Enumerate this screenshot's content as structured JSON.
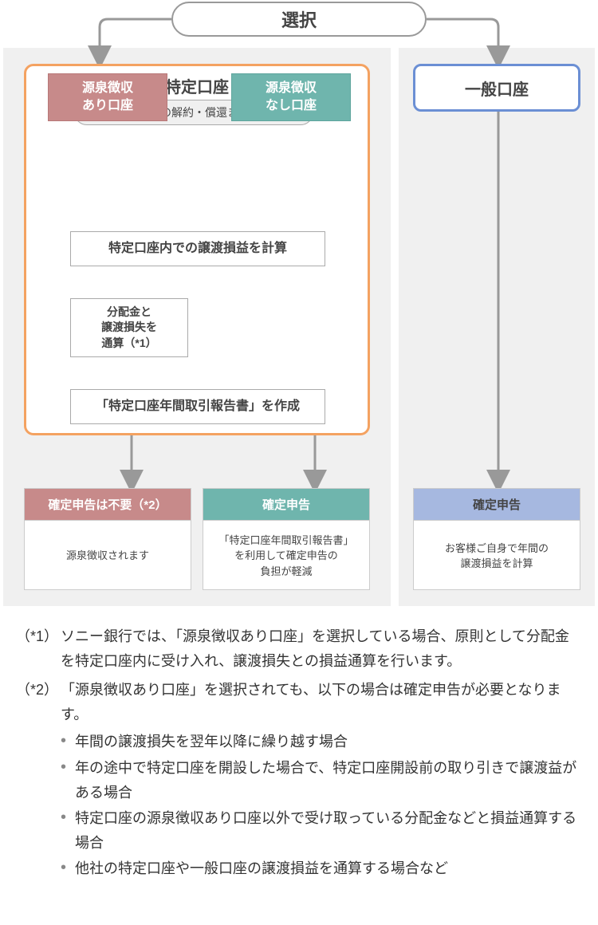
{
  "top": {
    "choice_label": "選択"
  },
  "tokutei": {
    "title": "特定口座",
    "sub_pill": "その年最初の解約・償還までに選択",
    "opt_ari": "源泉徴収\nあり口座",
    "opt_nashi": "源泉徴収\nなし口座",
    "step_calc": "特定口座内での譲渡損益を計算",
    "step_sum": "分配金と\n譲渡損失を\n通算（*1）",
    "step_rpt": "「特定口座年間取引報告書」を作成"
  },
  "ippan": {
    "title": "一般口座"
  },
  "results": {
    "left": {
      "header": "確定申告は不要（*2）",
      "body": "源泉徴収されます"
    },
    "mid": {
      "header": "確定申告",
      "body": "「特定口座年間取引報告書」\nを利用して確定申告の\n負担が軽減"
    },
    "right": {
      "header": "確定申告",
      "body": "お客様ご自身で年間の\n譲渡損益を計算"
    }
  },
  "notes": {
    "n1_label": "（*1）",
    "n1_body": "ソニー銀行では、「源泉徴収あり口座」を選択している場合、原則として分配金を特定口座内に受け入れ、譲渡損失との損益通算を行います。",
    "n2_label": "（*2）",
    "n2_body": "「源泉徴収あり口座」を選択されても、以下の場合は確定申告が必要となります。",
    "n2_items": [
      "年間の譲渡損失を翌年以降に繰り越す場合",
      "年の途中で特定口座を開設した場合で、特定口座開設前の取り引きで譲渡益がある場合",
      "特定口座の源泉徴収あり口座以外で受け取っている分配金などと損益通算する場合",
      "他社の特定口座や一般口座の譲渡損益を通算する場合など"
    ]
  },
  "colors": {
    "accent_orange": "#f4a261",
    "accent_blue": "#6b8fd4",
    "pink": "#c78a8a",
    "teal": "#6fb5ad",
    "lightblue": "#a6b8e0",
    "arrow": "#999999",
    "panel_bg": "#f0f0f0"
  }
}
